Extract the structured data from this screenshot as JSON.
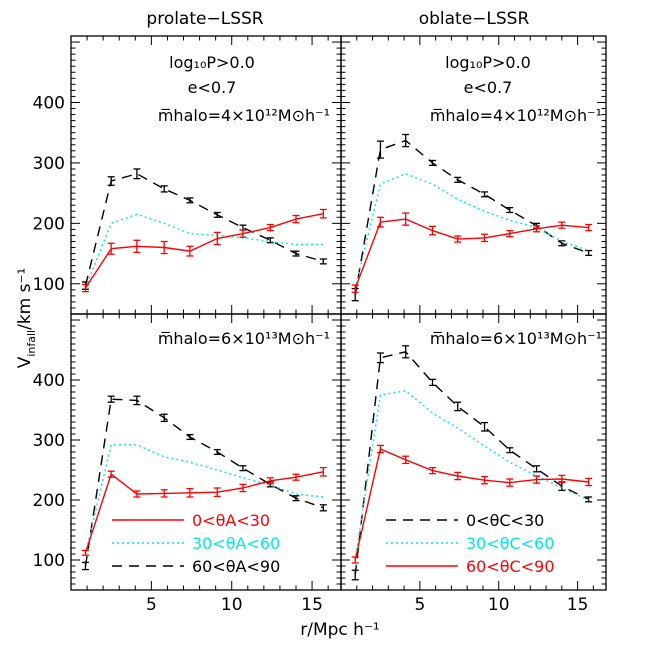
{
  "figure": {
    "titles": [
      "prolate−LSSR",
      "oblate−LSSR"
    ],
    "xlabel": "r/Mpc h⁻¹",
    "ylabel_main": "V",
    "ylabel_sub": "infall",
    "ylabel_rest": "/km s⁻¹"
  },
  "annotations": {
    "top_line1": "log₁₀P>0.0",
    "top_line2": "e<0.7",
    "top_mass": "m̅halo=4×10¹²M⊙h⁻¹",
    "bottom_mass": "m̅halo=6×10¹³M⊙h⁻¹"
  },
  "legends": {
    "left": [
      {
        "label": "0<θA<30",
        "color": "#ff0000",
        "dash": "solid"
      },
      {
        "label": "30<θA<60",
        "color": "#00e5ee",
        "dash": "dotted"
      },
      {
        "label": "60<θA<90",
        "color": "#000000",
        "dash": "dashed"
      }
    ],
    "right": [
      {
        "label": "0<θC<30",
        "color": "#000000",
        "dash": "dashed"
      },
      {
        "label": "30<θC<60",
        "color": "#00e5ee",
        "dash": "dotted"
      },
      {
        "label": "60<θC<90",
        "color": "#ff0000",
        "dash": "solid"
      }
    ]
  },
  "colors": {
    "red": "#ff0000",
    "cyan": "#00e5ee",
    "black": "#000000"
  },
  "chart_data": [
    {
      "type": "line",
      "panel": "top-left",
      "title": "prolate−LSSR",
      "xlim": [
        0,
        16.8
      ],
      "ylim": [
        50,
        510
      ],
      "x": [
        0.9,
        2.5,
        4.1,
        5.8,
        7.4,
        9.1,
        10.7,
        12.4,
        14.0,
        15.7
      ],
      "series": [
        {
          "color": "#000000",
          "dash": "dashed",
          "errorbars": true,
          "values": [
            97,
            270,
            282,
            257,
            238,
            214,
            193,
            172,
            150,
            137
          ],
          "errors": [
            6,
            7,
            8,
            5,
            4,
            4,
            4,
            4,
            4,
            4
          ]
        },
        {
          "color": "#00e5ee",
          "dash": "dotted",
          "errorbars": false,
          "values": [
            93,
            200,
            215,
            200,
            183,
            180,
            176,
            170,
            165,
            165
          ],
          "errors": []
        },
        {
          "color": "#ff0000",
          "dash": "solid",
          "errorbars": true,
          "values": [
            93,
            158,
            162,
            160,
            154,
            175,
            183,
            193,
            207,
            216
          ],
          "errors": [
            6,
            9,
            10,
            10,
            8,
            10,
            6,
            5,
            6,
            7
          ]
        }
      ]
    },
    {
      "type": "line",
      "panel": "top-right",
      "title": "oblate−LSSR",
      "xlim": [
        0,
        16.8
      ],
      "ylim": [
        50,
        510
      ],
      "x": [
        0.9,
        2.5,
        4.1,
        5.8,
        7.4,
        9.1,
        10.7,
        12.4,
        14.0,
        15.7
      ],
      "series": [
        {
          "color": "#000000",
          "dash": "dashed",
          "errorbars": true,
          "values": [
            82,
            322,
            337,
            300,
            272,
            248,
            222,
            196,
            167,
            151
          ],
          "errors": [
            10,
            14,
            10,
            4,
            4,
            4,
            4,
            4,
            4,
            4
          ]
        },
        {
          "color": "#00e5ee",
          "dash": "dotted",
          "errorbars": false,
          "values": [
            92,
            265,
            282,
            265,
            240,
            220,
            205,
            193,
            170,
            155
          ],
          "errors": []
        },
        {
          "color": "#ff0000",
          "dash": "solid",
          "errorbars": true,
          "values": [
            92,
            202,
            207,
            188,
            174,
            176,
            183,
            191,
            197,
            193
          ],
          "errors": [
            6,
            8,
            10,
            7,
            5,
            6,
            5,
            5,
            5,
            5
          ]
        }
      ]
    },
    {
      "type": "line",
      "panel": "bottom-left",
      "xlim": [
        0,
        16.8
      ],
      "ylim": [
        50,
        510
      ],
      "x": [
        0.9,
        2.5,
        4.1,
        5.8,
        7.4,
        9.1,
        10.7,
        12.4,
        14.0,
        15.7
      ],
      "series": [
        {
          "color": "#000000",
          "dash": "dashed",
          "errorbars": true,
          "values": [
            90,
            368,
            366,
            337,
            305,
            280,
            253,
            226,
            203,
            187
          ],
          "errors": [
            6,
            5,
            7,
            6,
            4,
            4,
            4,
            4,
            4,
            5
          ]
        },
        {
          "color": "#00e5ee",
          "dash": "dotted",
          "errorbars": false,
          "values": [
            110,
            292,
            292,
            272,
            263,
            250,
            237,
            225,
            210,
            205
          ],
          "errors": []
        },
        {
          "color": "#ff0000",
          "dash": "solid",
          "errorbars": true,
          "values": [
            112,
            243,
            210,
            211,
            212,
            213,
            220,
            232,
            238,
            247
          ],
          "errors": [
            4,
            5,
            5,
            6,
            7,
            7,
            6,
            5,
            5,
            7
          ]
        }
      ]
    },
    {
      "type": "line",
      "panel": "bottom-right",
      "xlim": [
        0,
        16.8
      ],
      "ylim": [
        50,
        510
      ],
      "x": [
        0.9,
        2.5,
        4.1,
        5.8,
        7.4,
        9.1,
        10.7,
        12.4,
        14.0,
        15.7
      ],
      "series": [
        {
          "color": "#000000",
          "dash": "dashed",
          "errorbars": true,
          "values": [
            75,
            437,
            447,
            396,
            356,
            322,
            283,
            252,
            223,
            201
          ],
          "errors": [
            8,
            8,
            10,
            5,
            7,
            7,
            4,
            5,
            7,
            4
          ]
        },
        {
          "color": "#00e5ee",
          "dash": "dotted",
          "errorbars": false,
          "values": [
            100,
            375,
            382,
            345,
            320,
            290,
            263,
            240,
            220,
            200
          ],
          "errors": []
        },
        {
          "color": "#ff0000",
          "dash": "solid",
          "errorbars": true,
          "values": [
            100,
            285,
            267,
            249,
            240,
            233,
            229,
            234,
            235,
            230
          ],
          "errors": [
            5,
            6,
            6,
            5,
            6,
            6,
            6,
            6,
            6,
            6
          ]
        }
      ]
    }
  ]
}
